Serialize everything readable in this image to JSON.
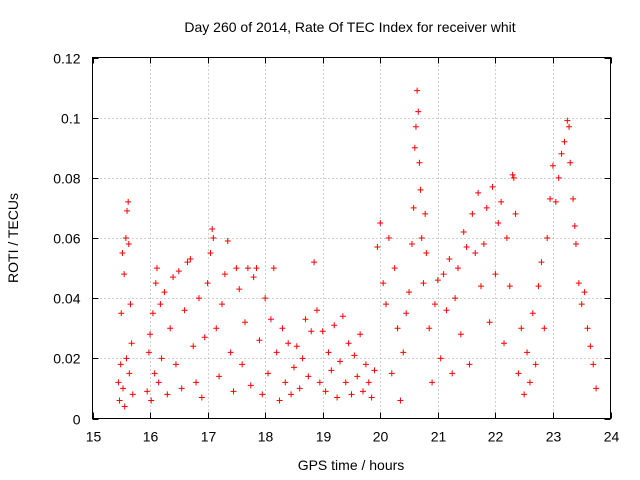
{
  "chart_data": {
    "type": "scatter",
    "title": "Day 260 of 2014, Rate Of TEC Index for receiver whit",
    "xlabel": "GPS time / hours",
    "ylabel": "ROTI / TECUs",
    "xlim": [
      15,
      24
    ],
    "ylim": [
      0,
      0.12
    ],
    "xticks": [
      15,
      16,
      17,
      18,
      19,
      20,
      21,
      22,
      23,
      24
    ],
    "xtick_labels": [
      "15",
      "16",
      "17",
      "18",
      "19",
      "20",
      "21",
      "22",
      "23",
      "24"
    ],
    "yticks": [
      0,
      0.02,
      0.04,
      0.06,
      0.08,
      0.1,
      0.12
    ],
    "ytick_labels": [
      "0",
      "0.02",
      "0.04",
      "0.06",
      "0.08",
      "0.1",
      "0.12"
    ],
    "grid": true,
    "marker": "+",
    "color": "#ff0000",
    "series": [
      {
        "name": "ROTI",
        "points": [
          [
            15.45,
            0.012
          ],
          [
            15.47,
            0.006
          ],
          [
            15.49,
            0.018
          ],
          [
            15.5,
            0.035
          ],
          [
            15.52,
            0.055
          ],
          [
            15.53,
            0.01
          ],
          [
            15.55,
            0.048
          ],
          [
            15.56,
            0.004
          ],
          [
            15.58,
            0.06
          ],
          [
            15.59,
            0.02
          ],
          [
            15.6,
            0.069
          ],
          [
            15.62,
            0.072
          ],
          [
            15.63,
            0.058
          ],
          [
            15.64,
            0.015
          ],
          [
            15.66,
            0.038
          ],
          [
            15.68,
            0.025
          ],
          [
            15.7,
            0.008
          ],
          [
            15.95,
            0.009
          ],
          [
            15.98,
            0.022
          ],
          [
            16.0,
            0.028
          ],
          [
            16.02,
            0.006
          ],
          [
            16.05,
            0.035
          ],
          [
            16.08,
            0.015
          ],
          [
            16.1,
            0.045
          ],
          [
            16.12,
            0.05
          ],
          [
            16.15,
            0.012
          ],
          [
            16.18,
            0.038
          ],
          [
            16.2,
            0.02
          ],
          [
            16.25,
            0.042
          ],
          [
            16.3,
            0.008
          ],
          [
            16.35,
            0.03
          ],
          [
            16.4,
            0.047
          ],
          [
            16.45,
            0.018
          ],
          [
            16.5,
            0.049
          ],
          [
            16.55,
            0.01
          ],
          [
            16.6,
            0.036
          ],
          [
            16.65,
            0.052
          ],
          [
            16.7,
            0.053
          ],
          [
            16.75,
            0.024
          ],
          [
            16.8,
            0.012
          ],
          [
            16.85,
            0.04
          ],
          [
            16.9,
            0.007
          ],
          [
            16.95,
            0.027
          ],
          [
            17.0,
            0.045
          ],
          [
            17.05,
            0.055
          ],
          [
            17.08,
            0.063
          ],
          [
            17.1,
            0.06
          ],
          [
            17.15,
            0.03
          ],
          [
            17.2,
            0.014
          ],
          [
            17.25,
            0.038
          ],
          [
            17.3,
            0.048
          ],
          [
            17.35,
            0.059
          ],
          [
            17.4,
            0.022
          ],
          [
            17.45,
            0.009
          ],
          [
            17.5,
            0.05
          ],
          [
            17.55,
            0.043
          ],
          [
            17.6,
            0.018
          ],
          [
            17.65,
            0.032
          ],
          [
            17.7,
            0.05
          ],
          [
            17.75,
            0.011
          ],
          [
            17.8,
            0.047
          ],
          [
            17.85,
            0.05
          ],
          [
            17.9,
            0.026
          ],
          [
            17.95,
            0.008
          ],
          [
            18.0,
            0.04
          ],
          [
            18.05,
            0.015
          ],
          [
            18.1,
            0.033
          ],
          [
            18.15,
            0.05
          ],
          [
            18.2,
            0.022
          ],
          [
            18.25,
            0.006
          ],
          [
            18.3,
            0.03
          ],
          [
            18.35,
            0.012
          ],
          [
            18.4,
            0.025
          ],
          [
            18.45,
            0.008
          ],
          [
            18.5,
            0.017
          ],
          [
            18.55,
            0.024
          ],
          [
            18.6,
            0.01
          ],
          [
            18.65,
            0.02
          ],
          [
            18.7,
            0.033
          ],
          [
            18.75,
            0.014
          ],
          [
            18.8,
            0.029
          ],
          [
            18.85,
            0.052
          ],
          [
            18.9,
            0.036
          ],
          [
            18.95,
            0.012
          ],
          [
            19.0,
            0.029
          ],
          [
            19.05,
            0.009
          ],
          [
            19.1,
            0.022
          ],
          [
            19.15,
            0.016
          ],
          [
            19.2,
            0.031
          ],
          [
            19.25,
            0.007
          ],
          [
            19.3,
            0.019
          ],
          [
            19.35,
            0.034
          ],
          [
            19.4,
            0.012
          ],
          [
            19.45,
            0.025
          ],
          [
            19.5,
            0.008
          ],
          [
            19.55,
            0.021
          ],
          [
            19.6,
            0.014
          ],
          [
            19.65,
            0.028
          ],
          [
            19.7,
            0.009
          ],
          [
            19.75,
            0.018
          ],
          [
            19.8,
            0.012
          ],
          [
            19.85,
            0.007
          ],
          [
            19.9,
            0.016
          ],
          [
            19.95,
            0.057
          ],
          [
            20.0,
            0.065
          ],
          [
            20.05,
            0.045
          ],
          [
            20.1,
            0.038
          ],
          [
            20.15,
            0.06
          ],
          [
            20.2,
            0.015
          ],
          [
            20.25,
            0.05
          ],
          [
            20.3,
            0.03
          ],
          [
            20.35,
            0.006
          ],
          [
            20.4,
            0.022
          ],
          [
            20.45,
            0.035
          ],
          [
            20.5,
            0.042
          ],
          [
            20.55,
            0.058
          ],
          [
            20.58,
            0.07
          ],
          [
            20.6,
            0.09
          ],
          [
            20.62,
            0.097
          ],
          [
            20.64,
            0.109
          ],
          [
            20.66,
            0.102
          ],
          [
            20.68,
            0.085
          ],
          [
            20.7,
            0.076
          ],
          [
            20.72,
            0.06
          ],
          [
            20.75,
            0.045
          ],
          [
            20.78,
            0.068
          ],
          [
            20.8,
            0.055
          ],
          [
            20.85,
            0.03
          ],
          [
            20.9,
            0.012
          ],
          [
            20.95,
            0.038
          ],
          [
            21.0,
            0.046
          ],
          [
            21.05,
            0.02
          ],
          [
            21.1,
            0.048
          ],
          [
            21.15,
            0.036
          ],
          [
            21.2,
            0.053
          ],
          [
            21.25,
            0.015
          ],
          [
            21.3,
            0.04
          ],
          [
            21.35,
            0.05
          ],
          [
            21.4,
            0.028
          ],
          [
            21.45,
            0.062
          ],
          [
            21.5,
            0.057
          ],
          [
            21.55,
            0.018
          ],
          [
            21.6,
            0.068
          ],
          [
            21.65,
            0.055
          ],
          [
            21.7,
            0.075
          ],
          [
            21.75,
            0.044
          ],
          [
            21.8,
            0.058
          ],
          [
            21.85,
            0.07
          ],
          [
            21.9,
            0.032
          ],
          [
            21.95,
            0.077
          ],
          [
            22.0,
            0.048
          ],
          [
            22.05,
            0.065
          ],
          [
            22.1,
            0.072
          ],
          [
            22.15,
            0.025
          ],
          [
            22.2,
            0.06
          ],
          [
            22.25,
            0.044
          ],
          [
            22.3,
            0.081
          ],
          [
            22.32,
            0.08
          ],
          [
            22.35,
            0.068
          ],
          [
            22.4,
            0.015
          ],
          [
            22.45,
            0.03
          ],
          [
            22.5,
            0.008
          ],
          [
            22.55,
            0.022
          ],
          [
            22.6,
            0.012
          ],
          [
            22.65,
            0.035
          ],
          [
            22.7,
            0.018
          ],
          [
            22.75,
            0.044
          ],
          [
            22.8,
            0.052
          ],
          [
            22.85,
            0.03
          ],
          [
            22.9,
            0.06
          ],
          [
            22.95,
            0.073
          ],
          [
            23.0,
            0.084
          ],
          [
            23.05,
            0.072
          ],
          [
            23.1,
            0.08
          ],
          [
            23.15,
            0.088
          ],
          [
            23.2,
            0.092
          ],
          [
            23.25,
            0.099
          ],
          [
            23.28,
            0.097
          ],
          [
            23.3,
            0.085
          ],
          [
            23.35,
            0.073
          ],
          [
            23.38,
            0.064
          ],
          [
            23.4,
            0.058
          ],
          [
            23.45,
            0.045
          ],
          [
            23.5,
            0.038
          ],
          [
            23.55,
            0.042
          ],
          [
            23.6,
            0.03
          ],
          [
            23.65,
            0.024
          ],
          [
            23.7,
            0.018
          ],
          [
            23.75,
            0.01
          ]
        ]
      }
    ]
  }
}
